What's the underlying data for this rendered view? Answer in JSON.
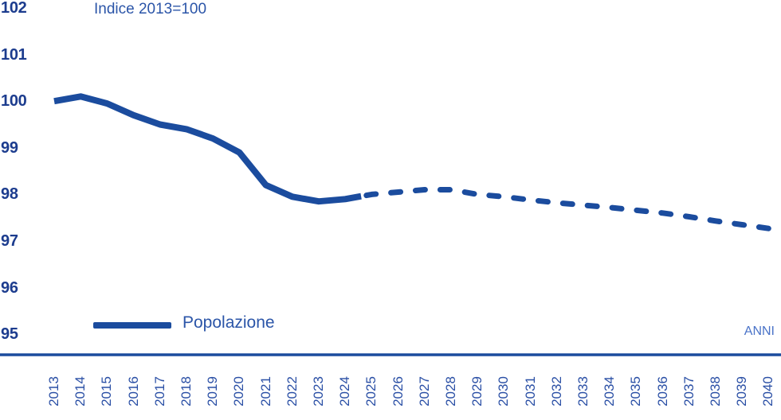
{
  "chart": {
    "title": "Indice 2013=100",
    "legend_label": "Popolazione",
    "xlabel": "ANNI"
  },
  "chart_data": {
    "type": "line",
    "title": "Indice 2013=100",
    "xlabel": "ANNI",
    "ylabel": "Indice 2013=100",
    "x": [
      2013,
      2014,
      2015,
      2016,
      2017,
      2018,
      2019,
      2020,
      2021,
      2022,
      2023,
      2024,
      2025,
      2026,
      2027,
      2028,
      2029,
      2030,
      2031,
      2032,
      2033,
      2034,
      2035,
      2036,
      2037,
      2038,
      2039,
      2040
    ],
    "series": [
      {
        "name": "Popolazione",
        "values": [
          100.0,
          100.1,
          99.95,
          99.7,
          99.5,
          99.4,
          99.2,
          98.9,
          98.2,
          97.95,
          97.85,
          97.9,
          98.0,
          98.05,
          98.1,
          98.1,
          98.0,
          97.95,
          97.88,
          97.82,
          97.77,
          97.72,
          97.66,
          97.6,
          97.52,
          97.43,
          97.35,
          97.27
        ],
        "solid_through": 2024,
        "dashed_from": 2025
      }
    ],
    "ylim": [
      95,
      102
    ],
    "yticks": [
      102,
      101,
      100,
      99,
      98,
      97,
      96,
      95
    ],
    "grid": false,
    "legend_position": "bottom-left",
    "colors": {
      "line": "#1b4c9e",
      "y_tick_labels": "#1c3c8e",
      "x_tick_labels": "#2a4fa5",
      "title_text": "#2b55a8",
      "xaxis_label_text": "#4a73c8"
    }
  }
}
